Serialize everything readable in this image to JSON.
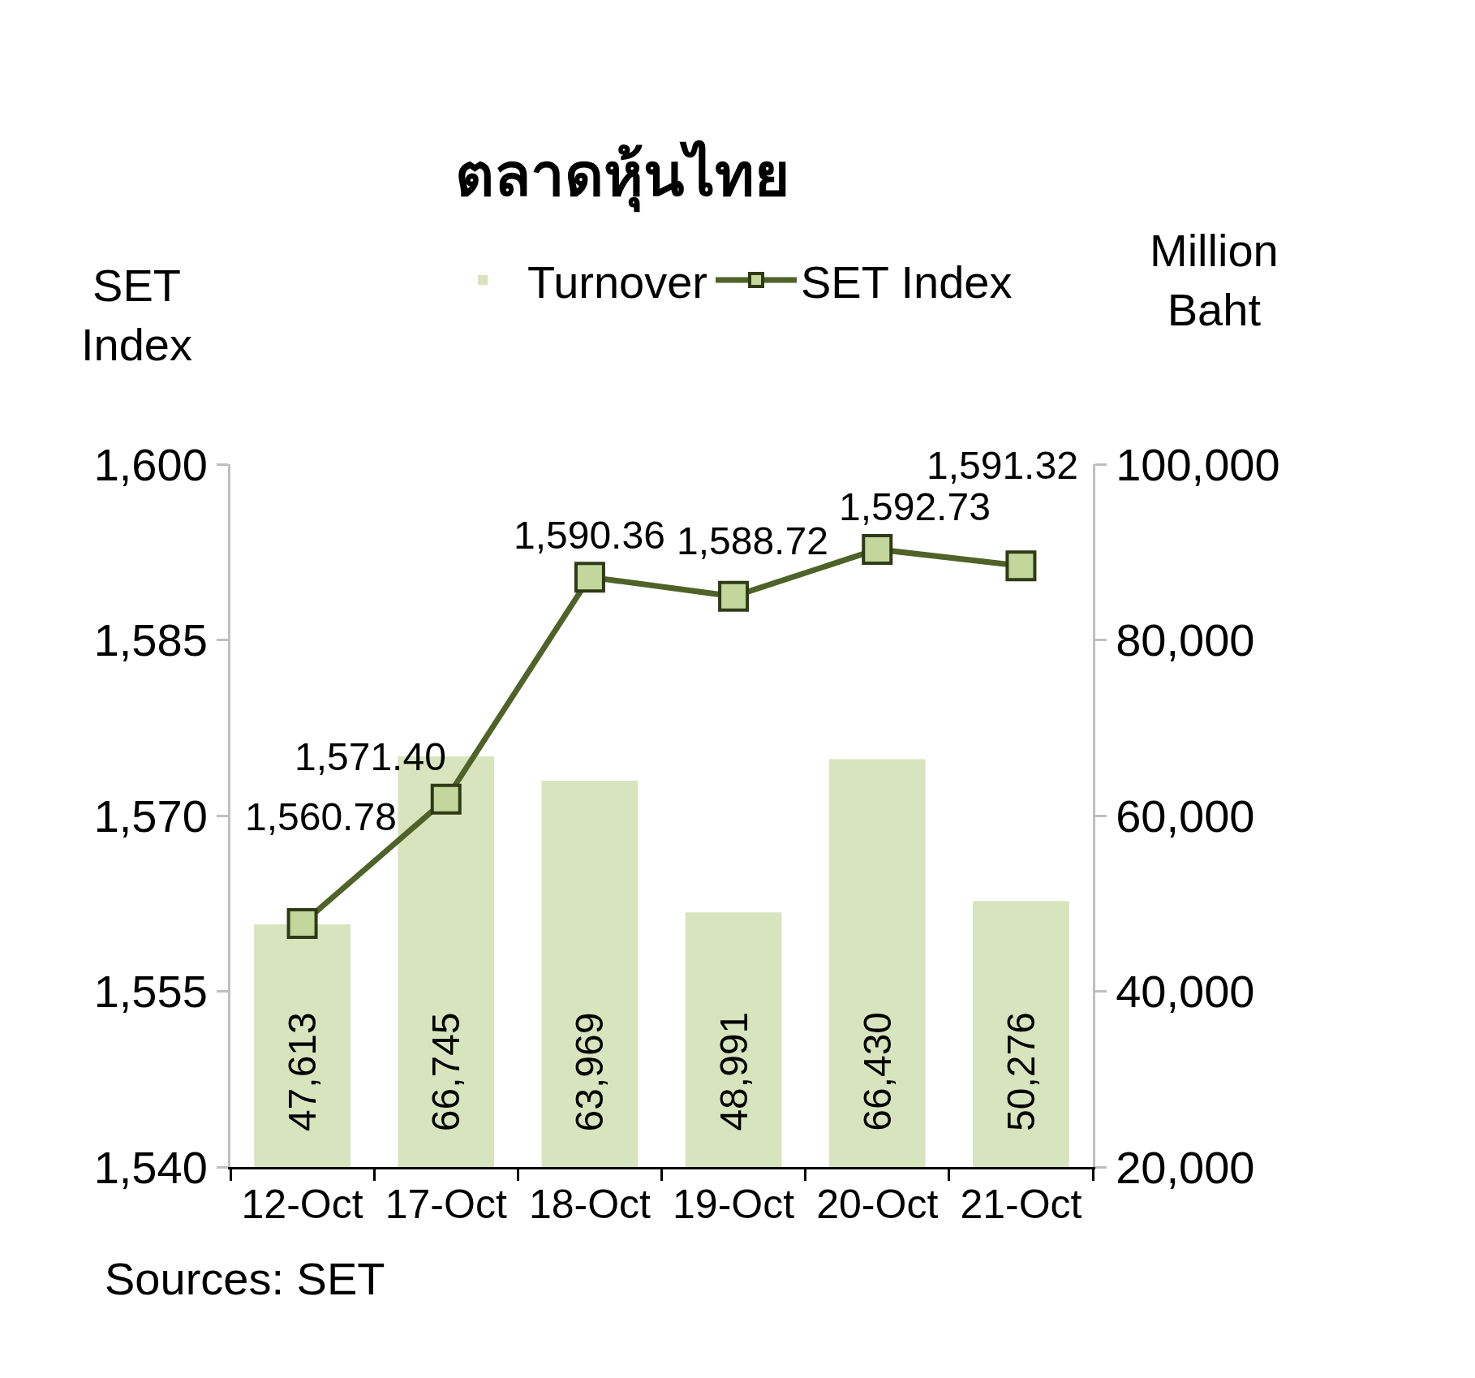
{
  "chart_data": {
    "type": "bar",
    "title": "ตลาดหุ้นไทย",
    "ylabel": "SET Index",
    "y2label": "Million Baht",
    "categories": [
      "12-Oct",
      "17-Oct",
      "18-Oct",
      "19-Oct",
      "20-Oct",
      "21-Oct"
    ],
    "series": [
      {
        "name": "Turnover",
        "axis": "y2",
        "color": "#d7e4bd",
        "values": [
          47613,
          66745,
          63969,
          48991,
          66430,
          50276
        ],
        "value_labels": [
          "47,613",
          "66,745",
          "63,969",
          "48,991",
          "66,430",
          "50,276"
        ]
      },
      {
        "name": "SET Index",
        "type": "line",
        "color": "#4f6228",
        "values": [
          1560.78,
          1571.4,
          1590.36,
          1588.72,
          1592.73,
          1591.32
        ],
        "value_labels": [
          "1,560.78",
          "1,571.40",
          "1,590.36",
          "1,588.72",
          "1,592.73",
          "1,591.32"
        ]
      }
    ],
    "ylim": [
      1540,
      1600
    ],
    "yticks": [
      {
        "value": 1540,
        "label": "1,540"
      },
      {
        "value": 1555,
        "label": "1,555"
      },
      {
        "value": 1570,
        "label": "1,570"
      },
      {
        "value": 1585,
        "label": "1,585"
      },
      {
        "value": 1600,
        "label": "1,600"
      }
    ],
    "y2lim": [
      20000,
      100000
    ],
    "y2ticks": [
      {
        "value": 20000,
        "label": "20,000"
      },
      {
        "value": 40000,
        "label": "40,000"
      },
      {
        "value": 60000,
        "label": "60,000"
      },
      {
        "value": 80000,
        "label": "80,000"
      },
      {
        "value": 100000,
        "label": "100,000"
      }
    ],
    "marker": "square",
    "grid": false,
    "legend": "top",
    "annotations": [
      "Sources: SET"
    ]
  }
}
